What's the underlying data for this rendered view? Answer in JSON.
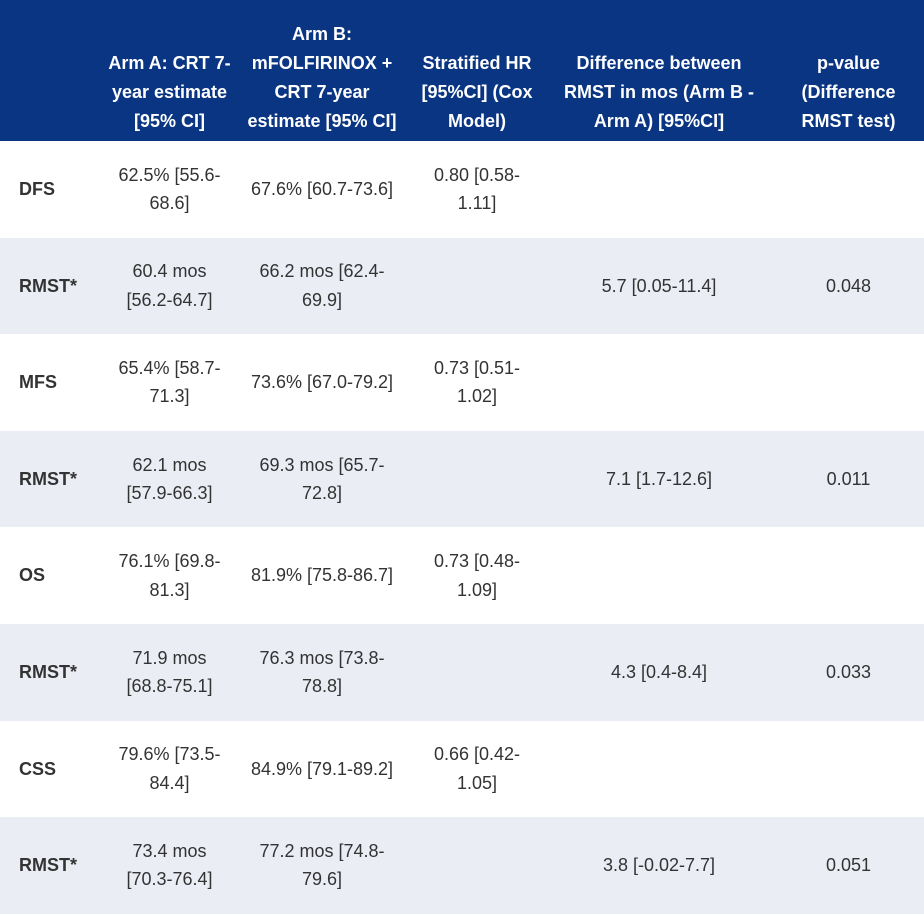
{
  "table": {
    "headers": [
      "",
      "Arm A: CRT 7-year estimate [95% CI]",
      "Arm B: mFOLFIRINOX + CRT 7-year estimate [95% CI]",
      "Stratified HR [95%CI] (Cox Model)",
      "Difference between RMST in mos (Arm B - Arm A) [95%CI]",
      "p-value (Difference RMST test)"
    ],
    "rows": [
      [
        "DFS",
        "62.5% [55.6-68.6]",
        "67.6% [60.7-73.6]",
        "0.80 [0.58-1.11]",
        "",
        ""
      ],
      [
        "RMST*",
        "60.4 mos [56.2-64.7]",
        "66.2 mos [62.4-69.9]",
        "",
        "5.7 [0.05-11.4]",
        "0.048"
      ],
      [
        "MFS",
        "65.4% [58.7-71.3]",
        "73.6% [67.0-79.2]",
        "0.73 [0.51-1.02]",
        "",
        ""
      ],
      [
        "RMST*",
        "62.1 mos [57.9-66.3]",
        "69.3 mos [65.7-72.8]",
        "",
        "7.1 [1.7-12.6]",
        "0.011"
      ],
      [
        "OS",
        "76.1% [69.8-81.3]",
        "81.9% [75.8-86.7]",
        "0.73 [0.48-1.09]",
        "",
        ""
      ],
      [
        "RMST*",
        "71.9 mos [68.8-75.1]",
        "76.3 mos [73.8-78.8]",
        "",
        "4.3 [0.4-8.4]",
        "0.033"
      ],
      [
        "CSS",
        "79.6% [73.5-84.4]",
        "84.9% [79.1-89.2]",
        "0.66 [0.42-1.05]",
        "",
        ""
      ],
      [
        "RMST*",
        "73.4 mos [70.3-76.4]",
        "77.2 mos [74.8-79.6]",
        "",
        "3.8 [-0.02-7.7]",
        "0.051"
      ]
    ]
  },
  "colors": {
    "header_bg": "#0a3583",
    "header_text": "#ffffff",
    "row_alt_bg": "#eaedf4",
    "body_text": "#333333"
  }
}
